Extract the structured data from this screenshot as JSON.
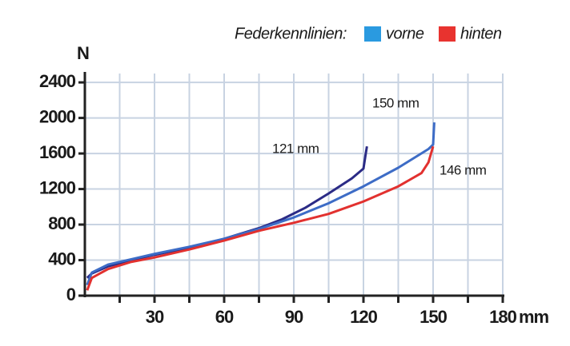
{
  "chart_data": {
    "type": "line",
    "legend": {
      "title": "Federkennlinien:",
      "items": [
        {
          "label": "vorne",
          "color": "#2a9ae0"
        },
        {
          "label": "hinten",
          "color": "#e8332f"
        }
      ]
    },
    "y_label": "N",
    "x_label": "mm",
    "xlim": [
      0,
      180
    ],
    "ylim": [
      0,
      2500
    ],
    "xticks": [
      30,
      60,
      90,
      120,
      150,
      180
    ],
    "x_minor_ticks": [
      15,
      45,
      75,
      105,
      135,
      165
    ],
    "yticks": [
      0,
      400,
      800,
      1200,
      1600,
      2000,
      2400
    ],
    "grid": true,
    "series": [
      {
        "name": "121 mm",
        "color": "#2b2b86",
        "x": [
          1,
          3,
          10,
          20,
          30,
          45,
          60,
          75,
          85,
          95,
          105,
          115,
          120,
          121,
          121.5
        ],
        "values": [
          200,
          250,
          330,
          400,
          460,
          540,
          640,
          760,
          860,
          990,
          1150,
          1320,
          1430,
          1600,
          1680
        ]
      },
      {
        "name": "150 mm",
        "color": "#3d6cc6",
        "x": [
          1,
          3,
          10,
          20,
          30,
          45,
          60,
          75,
          90,
          105,
          120,
          135,
          148,
          150,
          150.5
        ],
        "values": [
          120,
          260,
          350,
          410,
          470,
          550,
          640,
          750,
          880,
          1040,
          1230,
          1440,
          1650,
          1700,
          1950
        ]
      },
      {
        "name": "146 mm",
        "color": "#e2312f",
        "x": [
          1,
          3,
          10,
          20,
          30,
          45,
          60,
          75,
          90,
          105,
          120,
          135,
          145,
          148,
          150
        ],
        "values": [
          60,
          200,
          300,
          380,
          430,
          520,
          620,
          730,
          820,
          920,
          1060,
          1230,
          1380,
          1500,
          1680
        ]
      }
    ]
  }
}
